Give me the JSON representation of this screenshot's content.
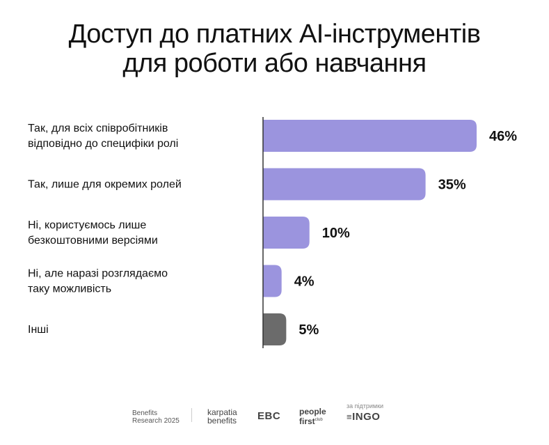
{
  "title": {
    "line1": "Доступ до платних AI-інструментів",
    "line2": "для роботи або навчання"
  },
  "colors": {
    "accent": "#9b94de",
    "other": "#6b6b6b",
    "axis": "#333333"
  },
  "chart_data": {
    "type": "bar",
    "orientation": "horizontal",
    "xlim": [
      0,
      100
    ],
    "grid": false,
    "categories": [
      [
        "Так, для всіх співробітників",
        "відповідно до специфіки ролі"
      ],
      [
        "Так, лише для окремих ролей"
      ],
      [
        "Ні, користуємось лише",
        "безкоштовними версіями"
      ],
      [
        "Ні, але наразі розглядаємо",
        "таку можливість"
      ],
      [
        "Інші"
      ]
    ],
    "values": [
      46,
      35,
      10,
      4,
      5
    ],
    "value_labels": [
      "46%",
      "35%",
      "10%",
      "4%",
      "5%"
    ],
    "bar_colors": [
      "#9b94de",
      "#9b94de",
      "#9b94de",
      "#9b94de",
      "#6b6b6b"
    ]
  },
  "footer": {
    "research_line1": "Benefits",
    "research_line2": "Research 2025",
    "karpatia_line1": "karpatia",
    "karpatia_line2": "benefits",
    "ebc": "EBC",
    "people_line1": "people",
    "people_line2": "first",
    "people_club": "club",
    "support": "за підтримки",
    "ingo": "INGO"
  }
}
